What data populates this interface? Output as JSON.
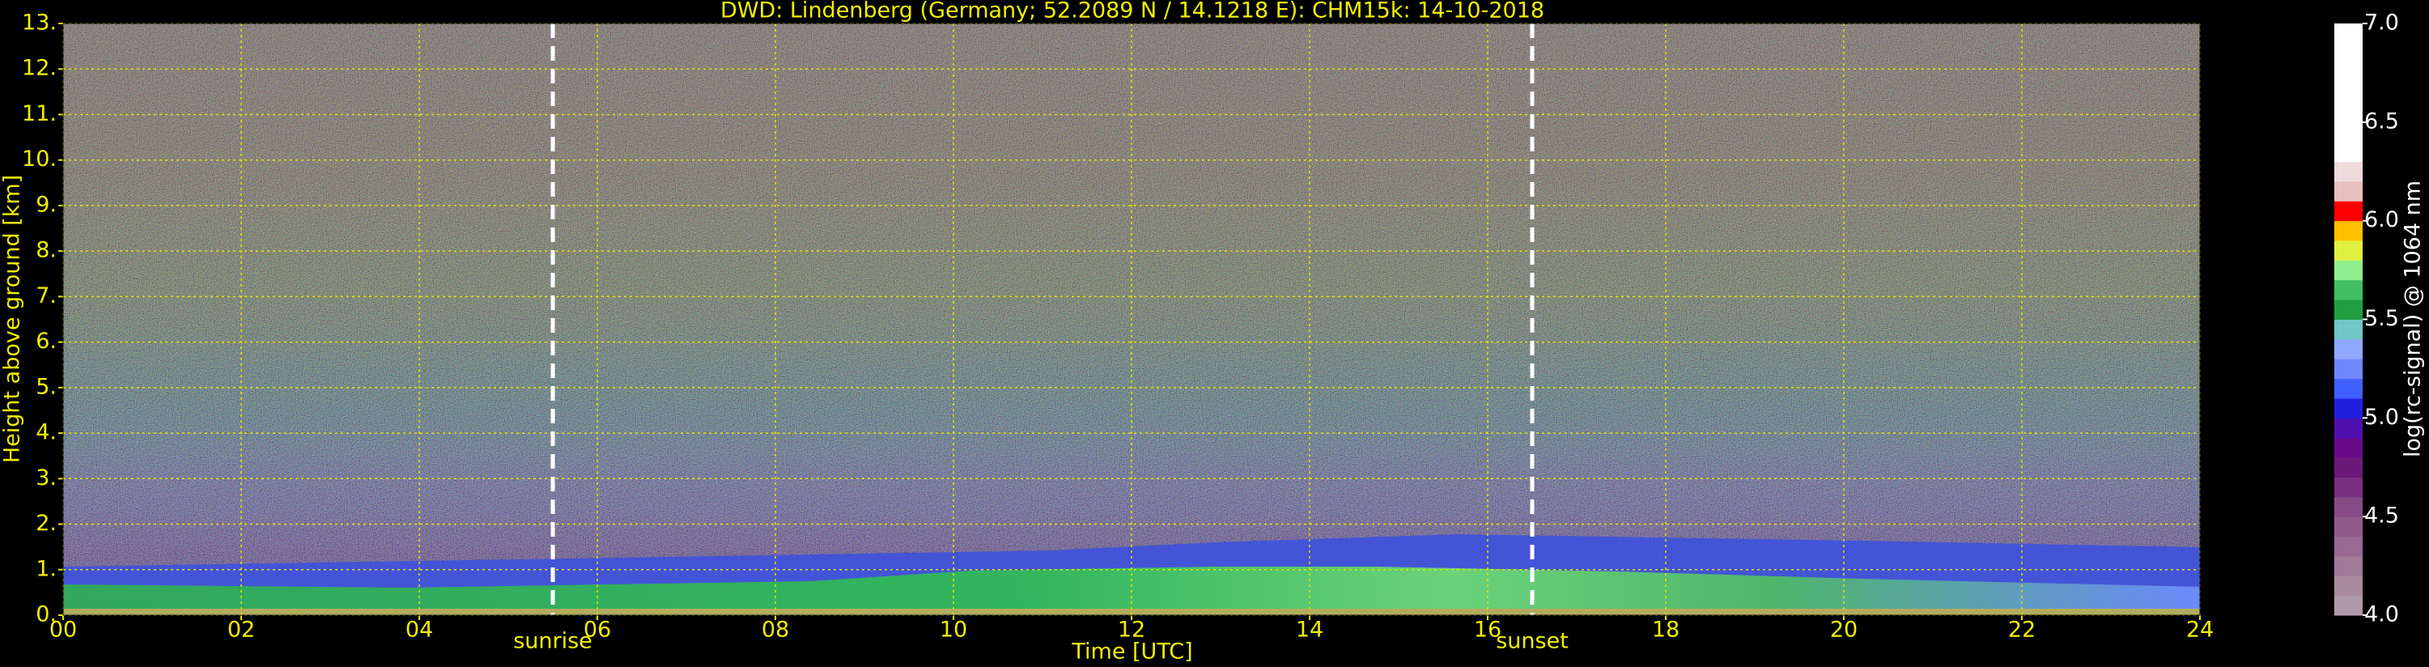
{
  "chart_data": {
    "type": "heatmap",
    "title": "DWD: Lindenberg (Germany; 52.2089 N / 14.1218 E):    CHM15k: 14-10-2018",
    "xlabel": "Time [UTC]",
    "ylabel": "Height above ground [km]",
    "xlim": [
      0,
      24
    ],
    "xticks": [
      {
        "value": 0,
        "label": "00"
      },
      {
        "value": 2,
        "label": "02"
      },
      {
        "value": 4,
        "label": "04"
      },
      {
        "value": 6,
        "label": "06"
      },
      {
        "value": 8,
        "label": "08"
      },
      {
        "value": 10,
        "label": "10"
      },
      {
        "value": 12,
        "label": "12"
      },
      {
        "value": 14,
        "label": "14"
      },
      {
        "value": 16,
        "label": "16"
      },
      {
        "value": 18,
        "label": "18"
      },
      {
        "value": 20,
        "label": "20"
      },
      {
        "value": 22,
        "label": "22"
      },
      {
        "value": 24,
        "label": "24"
      }
    ],
    "ylim": [
      0,
      13
    ],
    "yticks": [
      {
        "value": 0,
        "label": "0."
      },
      {
        "value": 1,
        "label": "1."
      },
      {
        "value": 2,
        "label": "2."
      },
      {
        "value": 3,
        "label": "3."
      },
      {
        "value": 4,
        "label": "4."
      },
      {
        "value": 5,
        "label": "5."
      },
      {
        "value": 6,
        "label": "6."
      },
      {
        "value": 7,
        "label": "7."
      },
      {
        "value": 8,
        "label": "8."
      },
      {
        "value": 9,
        "label": "9."
      },
      {
        "value": 10,
        "label": "10."
      },
      {
        "value": 11,
        "label": "11."
      },
      {
        "value": 12,
        "label": "12."
      },
      {
        "value": 13,
        "label": "13."
      }
    ],
    "grid": true,
    "grid_color": "#e8e800",
    "annotations": [
      {
        "text": "sunrise",
        "x": 5.5
      },
      {
        "text": "sunset",
        "x": 16.5
      }
    ],
    "colorbar": {
      "label": "log(rc-signal) @ 1064 nm",
      "lim": [
        4,
        7
      ],
      "ticks": [
        {
          "value": 4,
          "label": "4.0"
        },
        {
          "value": 4.5,
          "label": "4.5"
        },
        {
          "value": 5,
          "label": "5.0"
        },
        {
          "value": 5.5,
          "label": "5.5"
        },
        {
          "value": 6,
          "label": "6.0"
        },
        {
          "value": 6.5,
          "label": "6.5"
        },
        {
          "value": 7,
          "label": "7.0"
        }
      ],
      "colors": [
        "#b09aaa",
        "#a88a9f",
        "#a07a98",
        "#986a92",
        "#905a8c",
        "#884a86",
        "#7a3080",
        "#6c1878",
        "#6a0a8a",
        "#5010b0",
        "#2020e0",
        "#4060ff",
        "#7088ff",
        "#90a8ff",
        "#70c8c8",
        "#20a040",
        "#40c060",
        "#90f090",
        "#e0f040",
        "#ffc000",
        "#ff0000",
        "#e8c0c0",
        "#f0dcdc",
        "#ffffff",
        "#ffffff",
        "#ffffff",
        "#ffffff",
        "#ffffff",
        "#ffffff",
        "#ffffff"
      ]
    }
  }
}
